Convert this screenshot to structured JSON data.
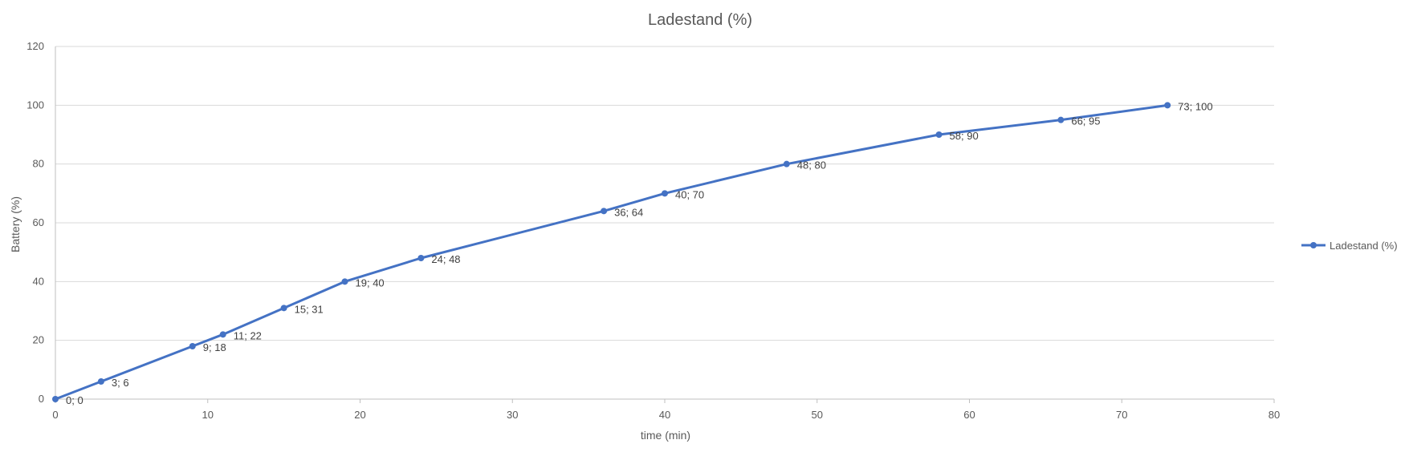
{
  "chart_data": {
    "type": "line",
    "title": "Ladestand (%)",
    "xlabel": "time (min)",
    "ylabel": "Battery (%)",
    "xlim": [
      0,
      80
    ],
    "ylim": [
      0,
      120
    ],
    "x_ticks": [
      0,
      10,
      20,
      30,
      40,
      50,
      60,
      70,
      80
    ],
    "y_ticks": [
      0,
      20,
      40,
      60,
      80,
      100,
      120
    ],
    "grid": "horizontal",
    "legend_position": "right",
    "series": [
      {
        "name": "Ladestand (%)",
        "color": "#4472C4",
        "points": [
          {
            "x": 0,
            "y": 0,
            "label": "0; 0"
          },
          {
            "x": 3,
            "y": 6,
            "label": "3; 6"
          },
          {
            "x": 9,
            "y": 18,
            "label": "9; 18"
          },
          {
            "x": 11,
            "y": 22,
            "label": "11; 22"
          },
          {
            "x": 15,
            "y": 31,
            "label": "15; 31"
          },
          {
            "x": 19,
            "y": 40,
            "label": "19; 40"
          },
          {
            "x": 24,
            "y": 48,
            "label": "24; 48"
          },
          {
            "x": 36,
            "y": 64,
            "label": "36; 64"
          },
          {
            "x": 40,
            "y": 70,
            "label": "40; 70"
          },
          {
            "x": 48,
            "y": 80,
            "label": "48; 80"
          },
          {
            "x": 58,
            "y": 90,
            "label": "58; 90"
          },
          {
            "x": 66,
            "y": 95,
            "label": "66; 95"
          },
          {
            "x": 73,
            "y": 100,
            "label": "73; 100"
          }
        ]
      }
    ]
  }
}
